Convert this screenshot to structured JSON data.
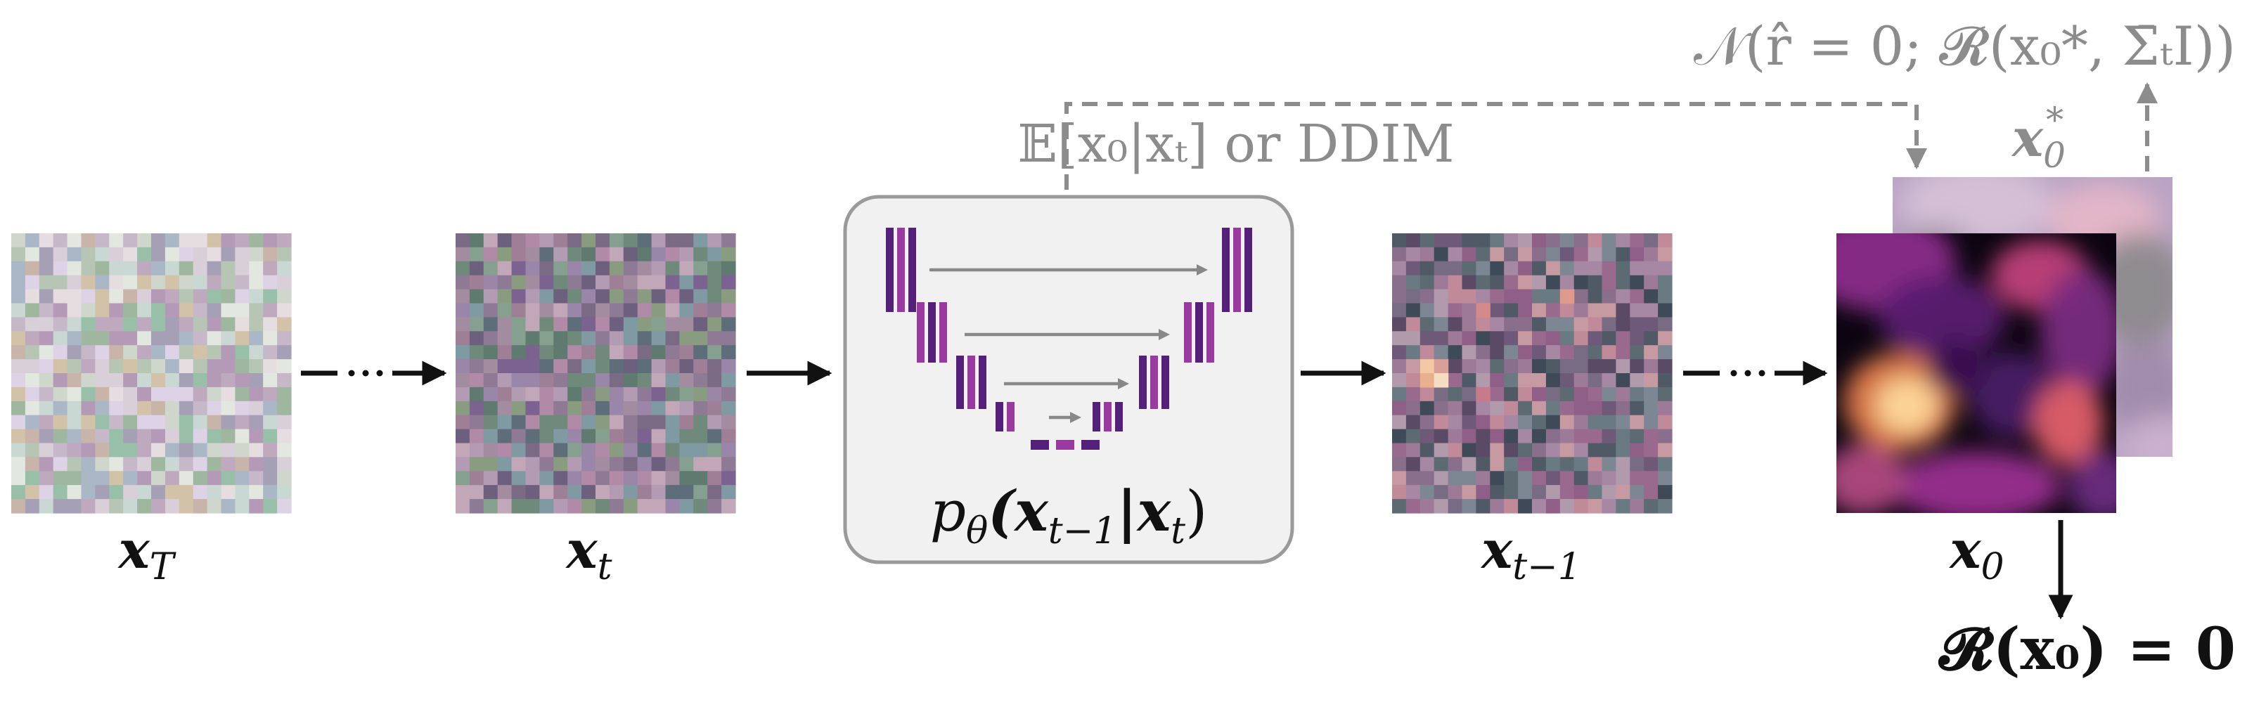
{
  "nodes": {
    "x_T": {
      "label": "x",
      "sub": "T"
    },
    "x_t": {
      "label": "x",
      "sub": "t"
    },
    "x_t_minus_1": {
      "label": "x",
      "sub": "t−1"
    },
    "x_0": {
      "label": "x",
      "sub": "0"
    },
    "x0_star": {
      "label": "x",
      "sub": "0",
      "sup": "*"
    }
  },
  "network": {
    "label_prefix": "p",
    "label_sub": "θ",
    "label_args": "(x",
    "label_arg_sub": "t−1",
    "label_mid": "|x",
    "label_mid_sub": "t",
    "label_end": ")"
  },
  "annotations": {
    "estimate_label": "𝔼[x₀|xₜ] or DDIM",
    "likelihood_label": "𝒩(r̂ = 0; 𝓡(x₀*, Σ̄ₜI))",
    "constraint_label": "𝓡(x₀) = 0"
  },
  "colors": {
    "arrow": "#111111",
    "dashed": "#8c8c8c",
    "unet_dark": "#54207a",
    "unet_light": "#9a3aa0",
    "unet_arrow": "#888888",
    "box_fill": "#f1f1f1",
    "box_stroke": "#9a9a9a"
  }
}
